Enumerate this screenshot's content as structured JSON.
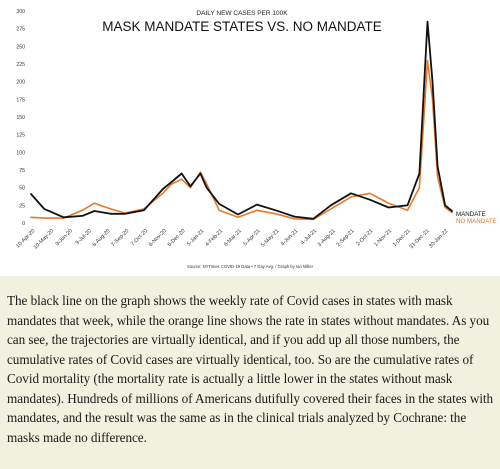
{
  "chart_data": {
    "type": "line",
    "subtitle": "DAILY NEW CASES PER 100K",
    "title": "MASK MANDATE STATES VS. NO MANDATE",
    "source": "Source: NYTimes COVID-19 Data • 7 Day Avg. / Graph by Ian Miller",
    "ylim": [
      0,
      300
    ],
    "y_ticks": [
      0,
      25,
      50,
      75,
      100,
      125,
      150,
      175,
      200,
      225,
      250,
      275,
      300
    ],
    "grid": false,
    "legend": "direct labels at end of lines",
    "x": [
      "2020-04-10",
      "2020-05-01",
      "2020-06-01",
      "2020-07-01",
      "2020-07-20",
      "2020-08-15",
      "2020-09-07",
      "2020-10-07",
      "2020-11-06",
      "2020-11-20",
      "2020-12-06",
      "2020-12-20",
      "2021-01-05",
      "2021-01-15",
      "2021-02-04",
      "2021-03-06",
      "2021-04-05",
      "2021-05-05",
      "2021-06-04",
      "2021-07-04",
      "2021-08-01",
      "2021-09-02",
      "2021-10-02",
      "2021-11-01",
      "2021-12-01",
      "2021-12-20",
      "2022-01-02",
      "2022-01-10",
      "2022-01-18",
      "2022-01-30",
      "2022-02-10"
    ],
    "x_tick_labels": [
      "10-Apr-20",
      "10-May-20",
      "9-Jun-20",
      "9-Jul-20",
      "8-Aug-20",
      "7-Sep-20",
      "7-Oct-20",
      "6-Nov-20",
      "6-Dec-20",
      "5-Jan-21",
      "4-Feb-21",
      "6-Mar-21",
      "5-Apr-21",
      "5-May-21",
      "4-Jun-21",
      "4-Jul-21",
      "3-Aug-21",
      "2-Sep-21",
      "2-Oct-21",
      "1-Nov-21",
      "1-Dec-21",
      "31-Dec-21",
      "30-Jan-22"
    ],
    "series": [
      {
        "name": "MANDATE",
        "color": "#111111",
        "values": [
          41,
          20,
          8,
          10,
          17,
          13,
          13,
          18,
          48,
          58,
          70,
          52,
          70,
          50,
          27,
          12,
          26,
          18,
          9,
          6,
          25,
          42,
          33,
          22,
          25,
          70,
          285,
          200,
          80,
          25,
          17
        ]
      },
      {
        "name": "NO MANDATE",
        "color": "#e8782a",
        "values": [
          8,
          7,
          7,
          18,
          28,
          20,
          14,
          20,
          42,
          55,
          62,
          50,
          72,
          55,
          18,
          8,
          18,
          13,
          6,
          5,
          20,
          37,
          42,
          28,
          18,
          50,
          230,
          175,
          65,
          22,
          15
        ]
      }
    ]
  },
  "article": {
    "text": "The black line on the graph shows the weekly rate of Covid cases in states with mask mandates that week, while the orange line shows the rate in states without mandates. As you can see, the trajectories are virtually identical, and if you add up all those numbers, the cumulative rates of Covid cases are virtually identical, too. So are the cumulative rates of Covid mortality (the mortality rate is actually a little lower in the states without mask mandates). Hundreds of millions of Americans dutifully covered their faces in the states with mandates, and the result was the same as in the clinical trials analyzed by Cochrane: the masks made no difference."
  }
}
